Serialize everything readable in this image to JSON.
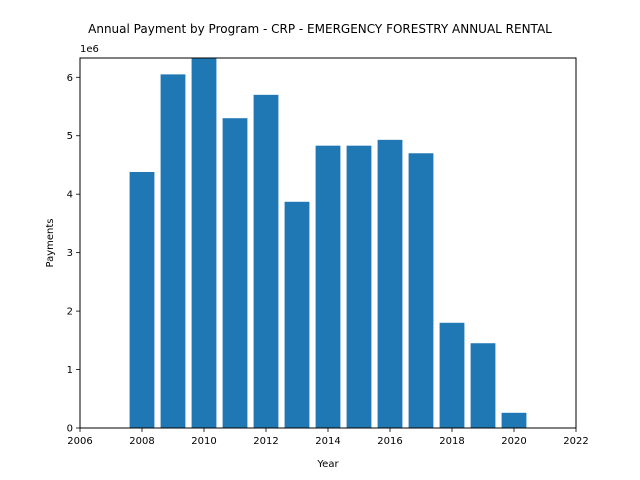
{
  "chart_data": {
    "type": "bar",
    "title": "Annual Payment by Program - CRP - EMERGENCY FORESTRY ANNUAL RENTAL",
    "xlabel": "Year",
    "ylabel": "Payments",
    "y_multiplier": "1e6",
    "xlim": [
      2006,
      2022
    ],
    "ylim": [
      0,
      6.33
    ],
    "x_ticks": [
      2006,
      2008,
      2010,
      2012,
      2014,
      2016,
      2018,
      2020,
      2022
    ],
    "y_ticks": [
      0,
      1,
      2,
      3,
      4,
      5,
      6
    ],
    "grid": false,
    "colors": {
      "bar": "#1f77b4"
    },
    "x": [
      2008,
      2009,
      2010,
      2011,
      2012,
      2013,
      2014,
      2015,
      2016,
      2017,
      2018,
      2019,
      2020
    ],
    "values": [
      4.38,
      6.05,
      6.33,
      5.3,
      5.7,
      3.87,
      4.83,
      4.83,
      4.93,
      4.7,
      1.8,
      1.45,
      0.26
    ]
  }
}
